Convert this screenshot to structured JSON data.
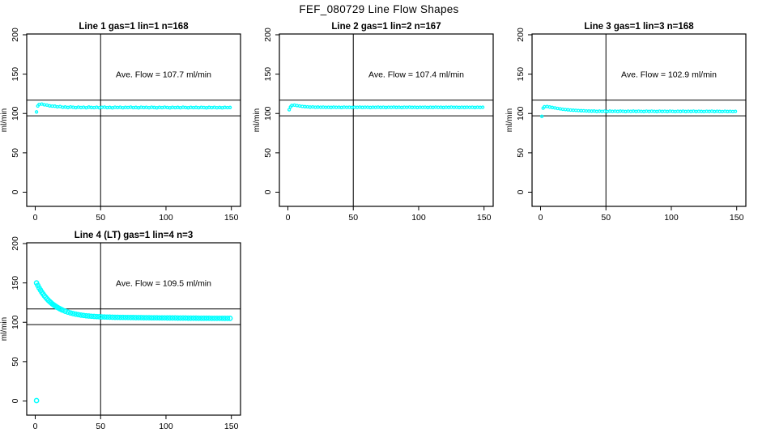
{
  "page_title": "FEF_080729  Line Flow Shapes",
  "colors": {
    "series": "#00ffff",
    "axis": "#000000",
    "background": "#ffffff",
    "text": "#000000"
  },
  "chart_data": [
    {
      "type": "scatter",
      "title": "Line 1 gas=1 lin=1 n=168",
      "annotation": "Ave. Flow =  107.7  ml/min",
      "ave_flow_ml_min": 107.7,
      "xlabel": "",
      "ylabel": "ml/min",
      "x_ticks": [
        0,
        50,
        100,
        150
      ],
      "y_ticks": [
        0,
        50,
        100,
        150,
        200
      ],
      "xlim": [
        -6.5,
        157
      ],
      "ylim": [
        -18,
        201
      ],
      "hlines": [
        97,
        117
      ],
      "vline": 50,
      "grid": false,
      "legend": false,
      "marker_radius": 1.5,
      "series_color": "#00ffff",
      "points": [
        [
          1,
          102
        ],
        [
          2,
          109.5
        ],
        [
          3,
          111.6
        ],
        [
          5,
          112
        ],
        [
          7,
          111
        ],
        [
          9,
          110.6
        ],
        [
          11,
          109.7
        ],
        [
          13,
          109.4
        ],
        [
          15,
          109.3
        ],
        [
          17,
          108.5
        ],
        [
          19,
          108.9
        ],
        [
          21,
          108
        ],
        [
          23,
          108.3
        ],
        [
          25,
          107.6
        ],
        [
          27,
          108.4
        ],
        [
          29,
          107.9
        ],
        [
          31,
          107.4
        ],
        [
          33,
          108.1
        ],
        [
          35,
          107.5
        ],
        [
          37,
          107.9
        ],
        [
          39,
          107.3
        ],
        [
          41,
          108.2
        ],
        [
          43,
          107.6
        ],
        [
          45,
          107.4
        ],
        [
          47,
          108
        ],
        [
          49,
          107.3
        ],
        [
          51,
          107.8
        ],
        [
          53,
          108.1
        ],
        [
          55,
          107.4
        ],
        [
          57,
          107.7
        ],
        [
          59,
          107.2
        ],
        [
          61,
          108
        ],
        [
          63,
          107.5
        ],
        [
          65,
          107.9
        ],
        [
          67,
          107.3
        ],
        [
          69,
          107.8
        ],
        [
          71,
          107.5
        ],
        [
          73,
          108.1
        ],
        [
          75,
          107.4
        ],
        [
          77,
          107.7
        ],
        [
          79,
          107.2
        ],
        [
          81,
          107.9
        ],
        [
          83,
          107.5
        ],
        [
          85,
          107.8
        ],
        [
          87,
          107.3
        ],
        [
          89,
          108
        ],
        [
          91,
          107.6
        ],
        [
          93,
          107.2
        ],
        [
          95,
          107.8
        ],
        [
          97,
          107.4
        ],
        [
          99,
          107.9
        ],
        [
          101,
          107.5
        ],
        [
          103,
          107.2
        ],
        [
          105,
          107.8
        ],
        [
          107,
          107.4
        ],
        [
          109,
          107.7
        ],
        [
          111,
          107.3
        ],
        [
          113,
          107.9
        ],
        [
          115,
          107.5
        ],
        [
          117,
          107.2
        ],
        [
          119,
          107.8
        ],
        [
          121,
          107.4
        ],
        [
          123,
          107.7
        ],
        [
          125,
          107.3
        ],
        [
          127,
          107.8
        ],
        [
          129,
          107.5
        ],
        [
          131,
          107.2
        ],
        [
          133,
          107.7
        ],
        [
          135,
          107.4
        ],
        [
          137,
          107.8
        ],
        [
          139,
          107.3
        ],
        [
          141,
          107.6
        ],
        [
          143,
          107.2
        ],
        [
          145,
          107.7
        ],
        [
          147,
          107.4
        ],
        [
          149,
          107.6
        ]
      ]
    },
    {
      "type": "scatter",
      "title": "Line 2 gas=1 lin=2 n=167",
      "annotation": "Ave. Flow =  107.4  ml/min",
      "ave_flow_ml_min": 107.4,
      "xlabel": "",
      "ylabel": "ml/min",
      "x_ticks": [
        0,
        50,
        100,
        150
      ],
      "y_ticks": [
        0,
        50,
        100,
        150,
        200
      ],
      "xlim": [
        -6.5,
        157
      ],
      "ylim": [
        -18,
        201
      ],
      "hlines": [
        97,
        117
      ],
      "vline": 50,
      "grid": false,
      "legend": false,
      "marker_radius": 1.5,
      "series_color": "#00ffff",
      "points": [
        [
          1,
          104.8
        ],
        [
          2,
          108.3
        ],
        [
          3,
          110.2
        ],
        [
          5,
          110.6
        ],
        [
          7,
          110
        ],
        [
          9,
          109.5
        ],
        [
          11,
          109
        ],
        [
          13,
          108.7
        ],
        [
          15,
          108.5
        ],
        [
          17,
          108.2
        ],
        [
          19,
          108.4
        ],
        [
          21,
          108
        ],
        [
          23,
          108.2
        ],
        [
          25,
          107.9
        ],
        [
          27,
          108.1
        ],
        [
          29,
          107.8
        ],
        [
          31,
          108
        ],
        [
          33,
          107.7
        ],
        [
          35,
          108.1
        ],
        [
          37,
          107.8
        ],
        [
          39,
          108
        ],
        [
          41,
          107.6
        ],
        [
          43,
          108.1
        ],
        [
          45,
          107.8
        ],
        [
          47,
          107.9
        ],
        [
          49,
          107.6
        ],
        [
          51,
          108
        ],
        [
          53,
          107.8
        ],
        [
          55,
          108.1
        ],
        [
          57,
          107.7
        ],
        [
          59,
          107.9
        ],
        [
          61,
          108
        ],
        [
          63,
          107.6
        ],
        [
          65,
          108
        ],
        [
          67,
          107.8
        ],
        [
          69,
          108.1
        ],
        [
          71,
          107.7
        ],
        [
          73,
          107.9
        ],
        [
          75,
          107.6
        ],
        [
          77,
          108
        ],
        [
          79,
          107.8
        ],
        [
          81,
          108.1
        ],
        [
          83,
          107.7
        ],
        [
          85,
          107.9
        ],
        [
          87,
          107.6
        ],
        [
          89,
          108
        ],
        [
          91,
          107.8
        ],
        [
          93,
          108.1
        ],
        [
          95,
          107.7
        ],
        [
          97,
          107.9
        ],
        [
          99,
          107.6
        ],
        [
          101,
          108
        ],
        [
          103,
          107.8
        ],
        [
          105,
          107.9
        ],
        [
          107,
          107.6
        ],
        [
          109,
          108
        ],
        [
          111,
          107.7
        ],
        [
          113,
          108.1
        ],
        [
          115,
          107.8
        ],
        [
          117,
          107.9
        ],
        [
          119,
          107.6
        ],
        [
          121,
          108
        ],
        [
          123,
          107.7
        ],
        [
          125,
          108.1
        ],
        [
          127,
          107.8
        ],
        [
          129,
          107.9
        ],
        [
          131,
          107.6
        ],
        [
          133,
          108
        ],
        [
          135,
          107.7
        ],
        [
          137,
          108
        ],
        [
          139,
          107.8
        ],
        [
          141,
          107.9
        ],
        [
          143,
          107.6
        ],
        [
          145,
          108
        ],
        [
          147,
          107.7
        ],
        [
          149,
          107.9
        ]
      ]
    },
    {
      "type": "scatter",
      "title": "Line 3 gas=1 lin=3 n=168",
      "annotation": "Ave. Flow =  102.9  ml/min",
      "ave_flow_ml_min": 102.9,
      "xlabel": "",
      "ylabel": "ml/min",
      "x_ticks": [
        0,
        50,
        100,
        150
      ],
      "y_ticks": [
        0,
        50,
        100,
        150,
        200
      ],
      "xlim": [
        -6.5,
        157
      ],
      "ylim": [
        -18,
        201
      ],
      "hlines": [
        97,
        117
      ],
      "vline": 50,
      "grid": false,
      "legend": false,
      "marker_radius": 1.5,
      "series_color": "#00ffff",
      "points": [
        [
          1,
          96.3
        ],
        [
          2,
          106.8
        ],
        [
          3,
          108.6
        ],
        [
          5,
          108.9
        ],
        [
          7,
          108.3
        ],
        [
          9,
          107.6
        ],
        [
          11,
          107
        ],
        [
          13,
          106.4
        ],
        [
          15,
          105.9
        ],
        [
          17,
          105.4
        ],
        [
          19,
          105
        ],
        [
          21,
          104.7
        ],
        [
          23,
          104.4
        ],
        [
          25,
          104.1
        ],
        [
          27,
          103.9
        ],
        [
          29,
          103.7
        ],
        [
          31,
          103.5
        ],
        [
          33,
          103.4
        ],
        [
          35,
          103.2
        ],
        [
          37,
          103.1
        ],
        [
          39,
          103
        ],
        [
          41,
          103.1
        ],
        [
          43,
          102.6
        ],
        [
          45,
          103
        ],
        [
          47,
          102.7
        ],
        [
          49,
          102.9
        ],
        [
          51,
          102.5
        ],
        [
          53,
          103
        ],
        [
          55,
          102.7
        ],
        [
          57,
          102.9
        ],
        [
          59,
          102.6
        ],
        [
          61,
          103
        ],
        [
          63,
          102.8
        ],
        [
          65,
          102.5
        ],
        [
          67,
          102.9
        ],
        [
          69,
          102.7
        ],
        [
          71,
          103
        ],
        [
          73,
          102.6
        ],
        [
          75,
          102.9
        ],
        [
          77,
          102.7
        ],
        [
          79,
          102.5
        ],
        [
          81,
          102.9
        ],
        [
          83,
          102.6
        ],
        [
          85,
          102.9
        ],
        [
          87,
          102.7
        ],
        [
          89,
          102.5
        ],
        [
          91,
          102.9
        ],
        [
          93,
          102.6
        ],
        [
          95,
          102.8
        ],
        [
          97,
          102.5
        ],
        [
          99,
          102.9
        ],
        [
          101,
          102.7
        ],
        [
          103,
          102.4
        ],
        [
          105,
          102.8
        ],
        [
          107,
          102.6
        ],
        [
          109,
          102.9
        ],
        [
          111,
          102.5
        ],
        [
          113,
          102.8
        ],
        [
          115,
          102.6
        ],
        [
          117,
          102.9
        ],
        [
          119,
          102.5
        ],
        [
          121,
          102.8
        ],
        [
          123,
          102.6
        ],
        [
          125,
          102.4
        ],
        [
          127,
          102.8
        ],
        [
          129,
          102.6
        ],
        [
          131,
          102.9
        ],
        [
          133,
          102.5
        ],
        [
          135,
          102.8
        ],
        [
          137,
          102.6
        ],
        [
          139,
          102.4
        ],
        [
          141,
          102.8
        ],
        [
          143,
          102.5
        ],
        [
          145,
          102.7
        ],
        [
          147,
          102.4
        ],
        [
          149,
          102.7
        ]
      ]
    },
    {
      "type": "scatter",
      "title": "Line 4 (LT) gas=1 lin=4 n=3",
      "annotation": "Ave. Flow =  109.5  ml/min",
      "ave_flow_ml_min": 109.5,
      "xlabel": "",
      "ylabel": "ml/min",
      "x_ticks": [
        0,
        50,
        100,
        150
      ],
      "y_ticks": [
        0,
        50,
        100,
        150,
        200
      ],
      "xlim": [
        -6.5,
        157
      ],
      "ylim": [
        -18,
        201
      ],
      "hlines": [
        97,
        117
      ],
      "vline": 50,
      "grid": false,
      "legend": false,
      "marker_radius": 2.6,
      "series_color": "#00ffff",
      "points": [
        [
          1,
          150
        ],
        [
          1,
          0.5
        ],
        [
          2,
          146.8
        ],
        [
          3,
          143.7
        ],
        [
          4,
          140.9
        ],
        [
          5,
          138.3
        ],
        [
          6,
          135.9
        ],
        [
          7,
          133.7
        ],
        [
          8,
          131.7
        ],
        [
          9,
          129.8
        ],
        [
          10,
          128
        ],
        [
          11,
          126.4
        ],
        [
          12,
          124.9
        ],
        [
          13,
          123.4
        ],
        [
          14,
          122.2
        ],
        [
          15,
          121
        ],
        [
          16,
          119.9
        ],
        [
          17,
          118.8
        ],
        [
          18,
          117.9
        ],
        [
          19,
          117
        ],
        [
          20,
          116.2
        ],
        [
          21,
          115.4
        ],
        [
          23,
          114
        ],
        [
          25,
          112.9
        ],
        [
          27,
          111.9
        ],
        [
          29,
          111
        ],
        [
          31,
          110.3
        ],
        [
          33,
          109.7
        ],
        [
          35,
          109.1
        ],
        [
          37,
          108.7
        ],
        [
          39,
          108.3
        ],
        [
          41,
          107.9
        ],
        [
          43,
          107.6
        ],
        [
          45,
          107.4
        ],
        [
          47,
          107.2
        ],
        [
          49,
          107
        ],
        [
          51,
          106.8
        ],
        [
          53,
          106.7
        ],
        [
          55,
          106.6
        ],
        [
          57,
          106.5
        ],
        [
          59,
          106.4
        ],
        [
          61,
          106.3
        ],
        [
          63,
          106.3
        ],
        [
          65,
          106.2
        ],
        [
          67,
          106.2
        ],
        [
          69,
          106.1
        ],
        [
          71,
          106.1
        ],
        [
          73,
          106
        ],
        [
          75,
          106
        ],
        [
          77,
          105.9
        ],
        [
          79,
          105.9
        ],
        [
          81,
          105.9
        ],
        [
          83,
          105.8
        ],
        [
          85,
          105.8
        ],
        [
          87,
          105.8
        ],
        [
          89,
          105.7
        ],
        [
          91,
          105.7
        ],
        [
          93,
          105.7
        ],
        [
          95,
          105.6
        ],
        [
          97,
          105.6
        ],
        [
          99,
          105.6
        ],
        [
          101,
          105.5
        ],
        [
          103,
          105.5
        ],
        [
          105,
          105.5
        ],
        [
          107,
          105.5
        ],
        [
          109,
          105.4
        ],
        [
          111,
          105.4
        ],
        [
          113,
          105.4
        ],
        [
          115,
          105.4
        ],
        [
          117,
          105.3
        ],
        [
          119,
          105.3
        ],
        [
          121,
          105.3
        ],
        [
          123,
          105.3
        ],
        [
          125,
          105.2
        ],
        [
          127,
          105.2
        ],
        [
          129,
          105.2
        ],
        [
          131,
          105.2
        ],
        [
          133,
          105.2
        ],
        [
          135,
          105.1
        ],
        [
          137,
          105.1
        ],
        [
          139,
          105.1
        ],
        [
          141,
          105.1
        ],
        [
          143,
          105.1
        ],
        [
          145,
          105
        ],
        [
          147,
          105
        ],
        [
          149,
          105
        ]
      ]
    }
  ]
}
